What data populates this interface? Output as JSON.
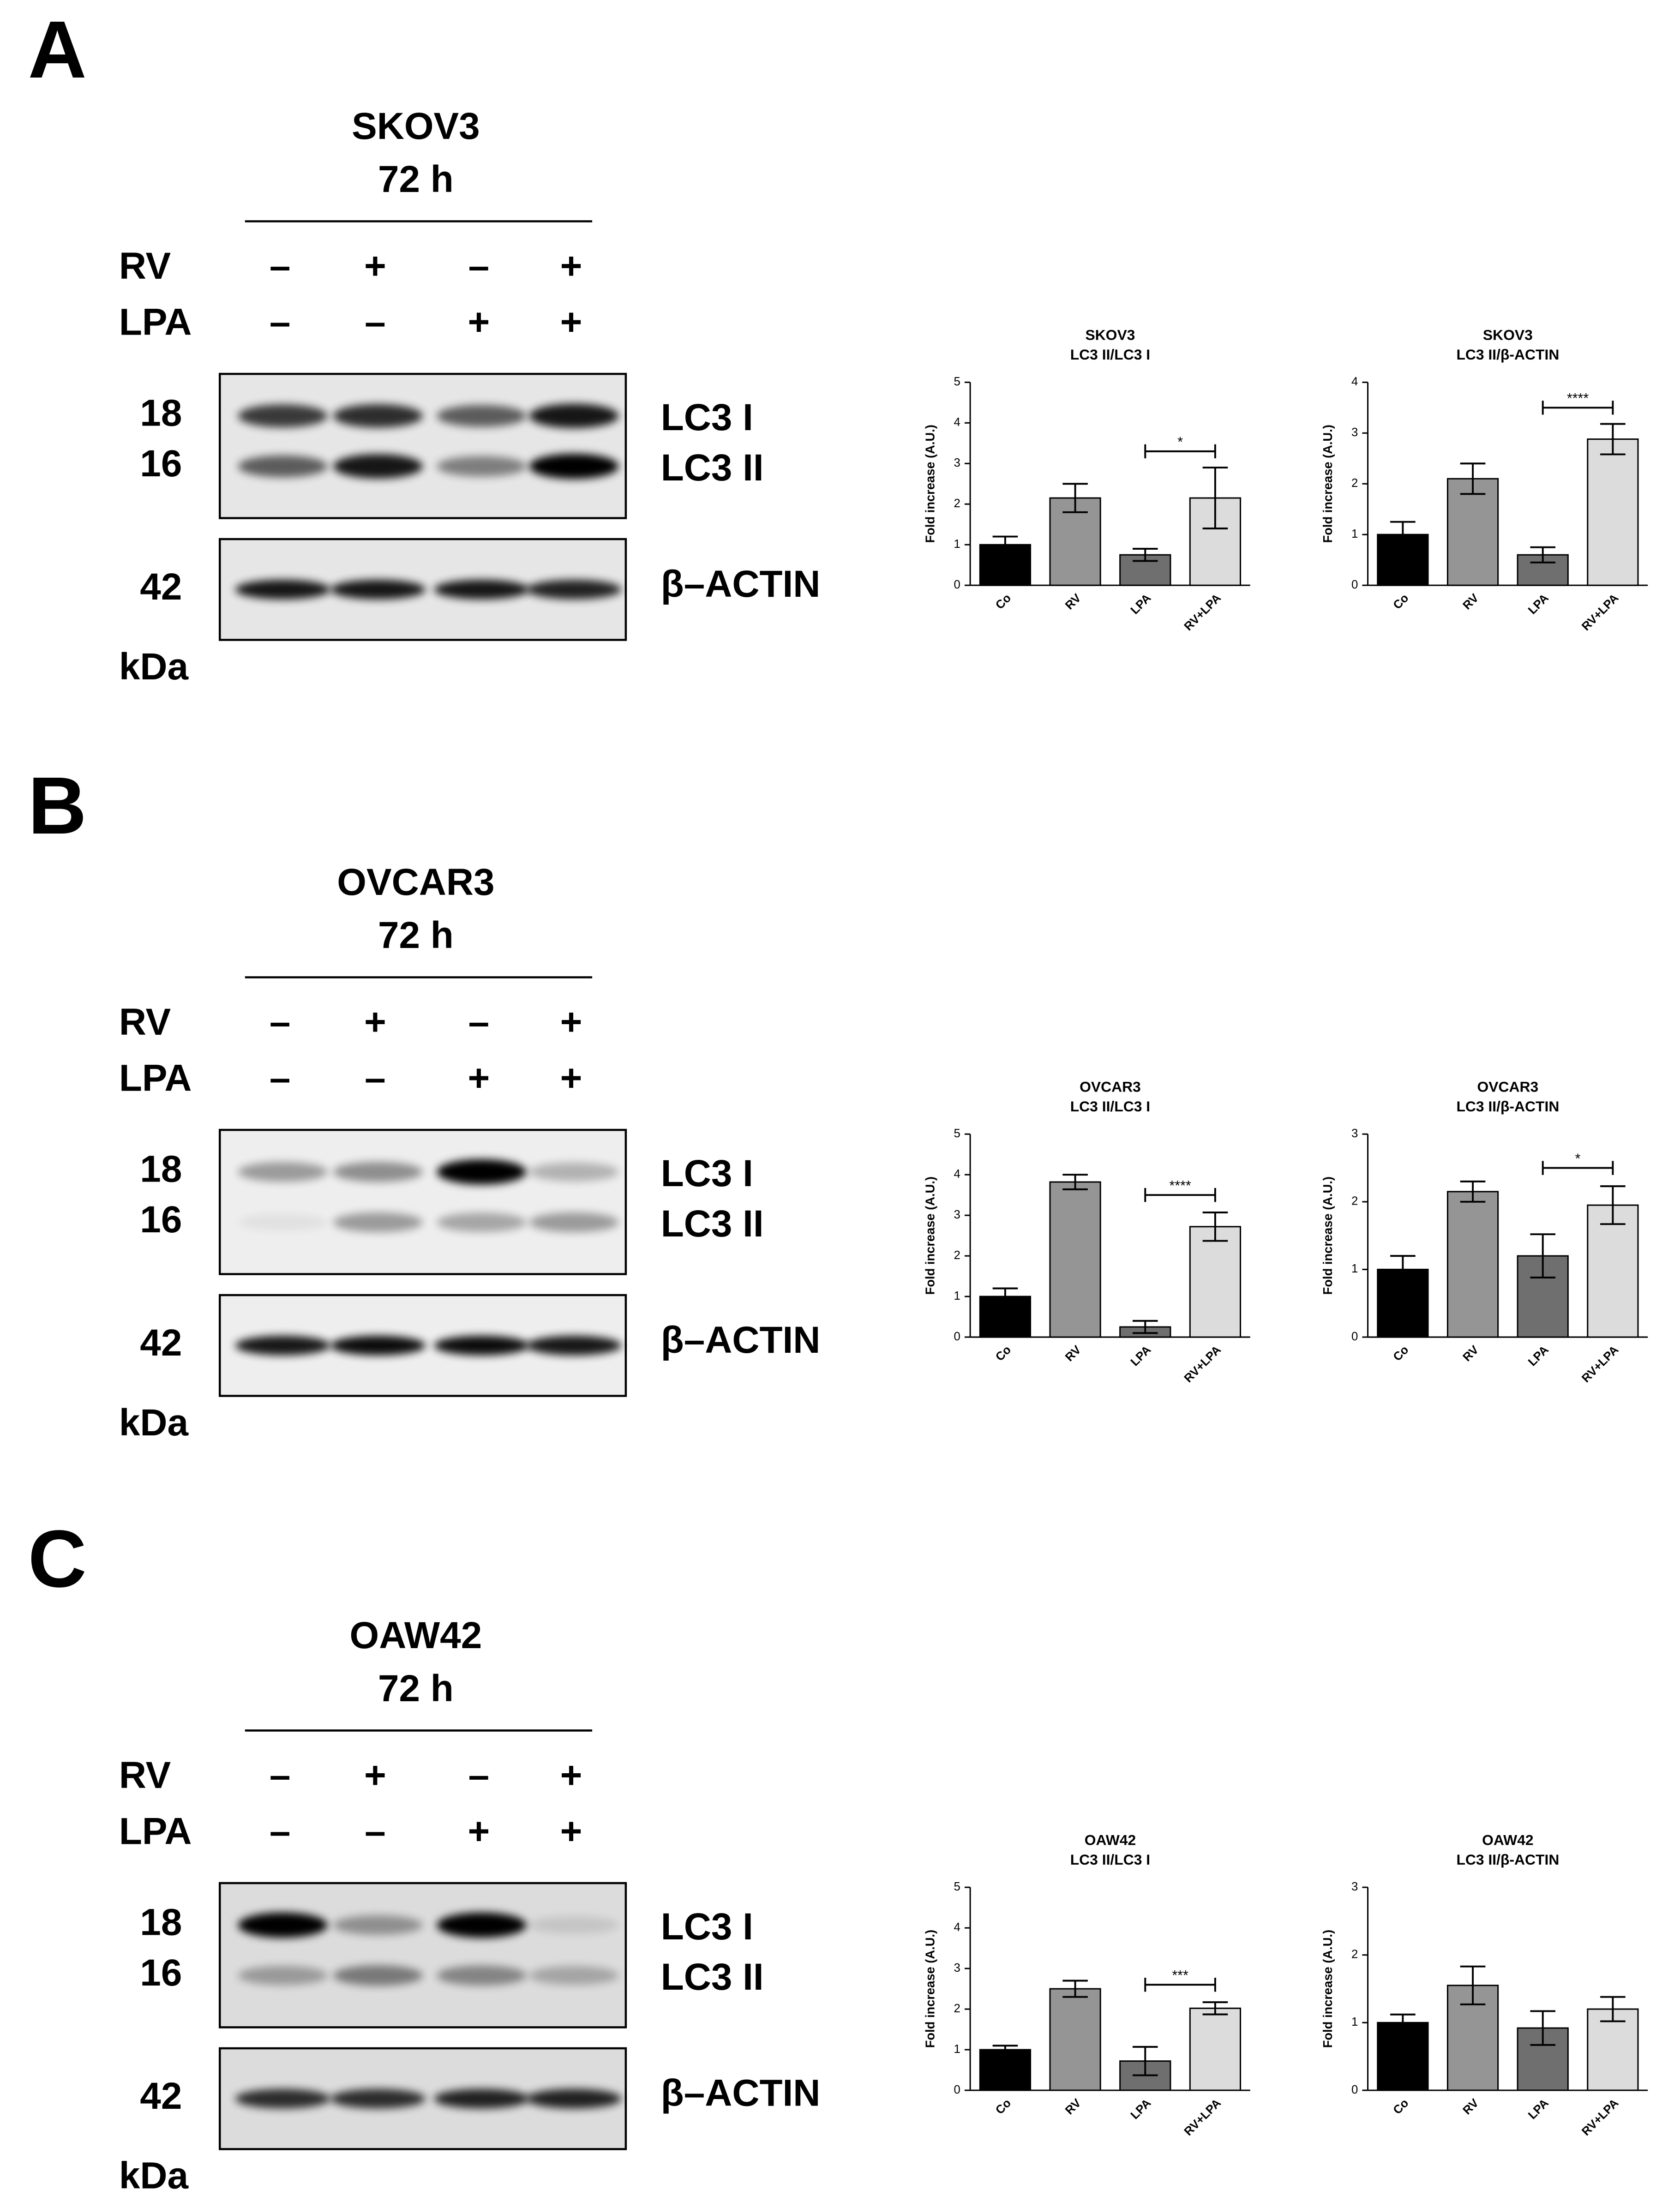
{
  "panels": [
    {
      "letter": "A",
      "blot": {
        "title": "SKOV3",
        "time": "72 h",
        "rows": [
          {
            "label": "RV",
            "signs": [
              "–",
              "+",
              "–",
              "+"
            ]
          },
          {
            "label": "LPA",
            "signs": [
              "–",
              "–",
              "+",
              "+"
            ]
          }
        ],
        "markers": [
          "18",
          "16"
        ],
        "bands": [
          "LC3 I",
          "LC3 II"
        ],
        "control_marker": "42",
        "control": "β–ACTIN",
        "unit": "kDa"
      },
      "charts": [
        {
          "type": "bar",
          "title": "SKOV3",
          "subtitle": "LC3 II/LC3 I",
          "ylabel": "Fold increase (A.U.)",
          "categories": [
            "Co",
            "RV",
            "LPA",
            "RV+LPA"
          ],
          "values": [
            1.0,
            2.15,
            0.75,
            2.15
          ],
          "errors": [
            0.2,
            0.35,
            0.15,
            0.75
          ],
          "colors": [
            "#000000",
            "#959595",
            "#6f6f6f",
            "#dcdcdc"
          ],
          "ylim": [
            0,
            5
          ],
          "yticks": [
            0,
            1,
            2,
            3,
            4,
            5
          ],
          "significance": {
            "between": [
              "LPA",
              "RV+LPA"
            ],
            "y": 3.3,
            "label": "*"
          }
        },
        {
          "type": "bar",
          "title": "SKOV3",
          "subtitle": "LC3 II/β-ACTIN",
          "ylabel": "Fold increase (A.U.)",
          "categories": [
            "Co",
            "RV",
            "LPA",
            "RV+LPA"
          ],
          "values": [
            1.0,
            2.1,
            0.6,
            2.88
          ],
          "errors": [
            0.25,
            0.3,
            0.15,
            0.3
          ],
          "colors": [
            "#000000",
            "#959595",
            "#6f6f6f",
            "#dcdcdc"
          ],
          "ylim": [
            0,
            4
          ],
          "yticks": [
            0,
            1,
            2,
            3,
            4
          ],
          "significance": {
            "between": [
              "LPA",
              "RV+LPA"
            ],
            "y": 3.5,
            "label": "****"
          }
        }
      ]
    },
    {
      "letter": "B",
      "blot": {
        "title": "OVCAR3",
        "time": "72 h",
        "rows": [
          {
            "label": "RV",
            "signs": [
              "–",
              "+",
              "–",
              "+"
            ]
          },
          {
            "label": "LPA",
            "signs": [
              "–",
              "–",
              "+",
              "+"
            ]
          }
        ],
        "markers": [
          "18",
          "16"
        ],
        "bands": [
          "LC3 I",
          "LC3 II"
        ],
        "control_marker": "42",
        "control": "β–ACTIN",
        "unit": "kDa"
      },
      "charts": [
        {
          "type": "bar",
          "title": "OVCAR3",
          "subtitle": "LC3 II/LC3 I",
          "ylabel": "Fold increase (A.U.)",
          "categories": [
            "Co",
            "RV",
            "LPA",
            "RV+LPA"
          ],
          "values": [
            1.0,
            3.82,
            0.25,
            2.72
          ],
          "errors": [
            0.2,
            0.18,
            0.15,
            0.35
          ],
          "colors": [
            "#000000",
            "#959595",
            "#6f6f6f",
            "#dcdcdc"
          ],
          "ylim": [
            0,
            5
          ],
          "yticks": [
            0,
            1,
            2,
            3,
            4,
            5
          ],
          "significance": {
            "between": [
              "LPA",
              "RV+LPA"
            ],
            "y": 3.5,
            "label": "****"
          }
        },
        {
          "type": "bar",
          "title": "OVCAR3",
          "subtitle": "LC3 II/β-ACTIN",
          "ylabel": "Fold increase (A.U.)",
          "categories": [
            "Co",
            "RV",
            "LPA",
            "RV+LPA"
          ],
          "values": [
            1.0,
            2.15,
            1.2,
            1.95
          ],
          "errors": [
            0.2,
            0.15,
            0.32,
            0.28
          ],
          "colors": [
            "#000000",
            "#959595",
            "#6f6f6f",
            "#dcdcdc"
          ],
          "ylim": [
            0,
            3
          ],
          "yticks": [
            0,
            1,
            2,
            3
          ],
          "significance": {
            "between": [
              "LPA",
              "RV+LPA"
            ],
            "y": 2.5,
            "label": "*"
          }
        }
      ]
    },
    {
      "letter": "C",
      "blot": {
        "title": "OAW42",
        "time": "72 h",
        "rows": [
          {
            "label": "RV",
            "signs": [
              "–",
              "+",
              "–",
              "+"
            ]
          },
          {
            "label": "LPA",
            "signs": [
              "–",
              "–",
              "+",
              "+"
            ]
          }
        ],
        "markers": [
          "18",
          "16"
        ],
        "bands": [
          "LC3 I",
          "LC3 II"
        ],
        "control_marker": "42",
        "control": "β–ACTIN",
        "unit": "kDa"
      },
      "charts": [
        {
          "type": "bar",
          "title": "OAW42",
          "subtitle": "LC3 II/LC3 I",
          "ylabel": "Fold increase (A.U.)",
          "categories": [
            "Co",
            "RV",
            "LPA",
            "RV+LPA"
          ],
          "values": [
            1.0,
            2.5,
            0.72,
            2.02
          ],
          "errors": [
            0.1,
            0.2,
            0.35,
            0.15
          ],
          "colors": [
            "#000000",
            "#959595",
            "#6f6f6f",
            "#dcdcdc"
          ],
          "ylim": [
            0,
            5
          ],
          "yticks": [
            0,
            1,
            2,
            3,
            4,
            5
          ],
          "significance": {
            "between": [
              "LPA",
              "RV+LPA"
            ],
            "y": 2.6,
            "label": "***"
          }
        },
        {
          "type": "bar",
          "title": "OAW42",
          "subtitle": "LC3 II/β-ACTIN",
          "ylabel": "Fold increase (A.U.)",
          "categories": [
            "Co",
            "RV",
            "LPA",
            "RV+LPA"
          ],
          "values": [
            1.0,
            1.55,
            0.92,
            1.2
          ],
          "errors": [
            0.12,
            0.28,
            0.25,
            0.18
          ],
          "colors": [
            "#000000",
            "#959595",
            "#6f6f6f",
            "#dcdcdc"
          ],
          "ylim": [
            0,
            3
          ],
          "yticks": [
            0,
            1,
            2,
            3
          ]
        }
      ]
    }
  ]
}
